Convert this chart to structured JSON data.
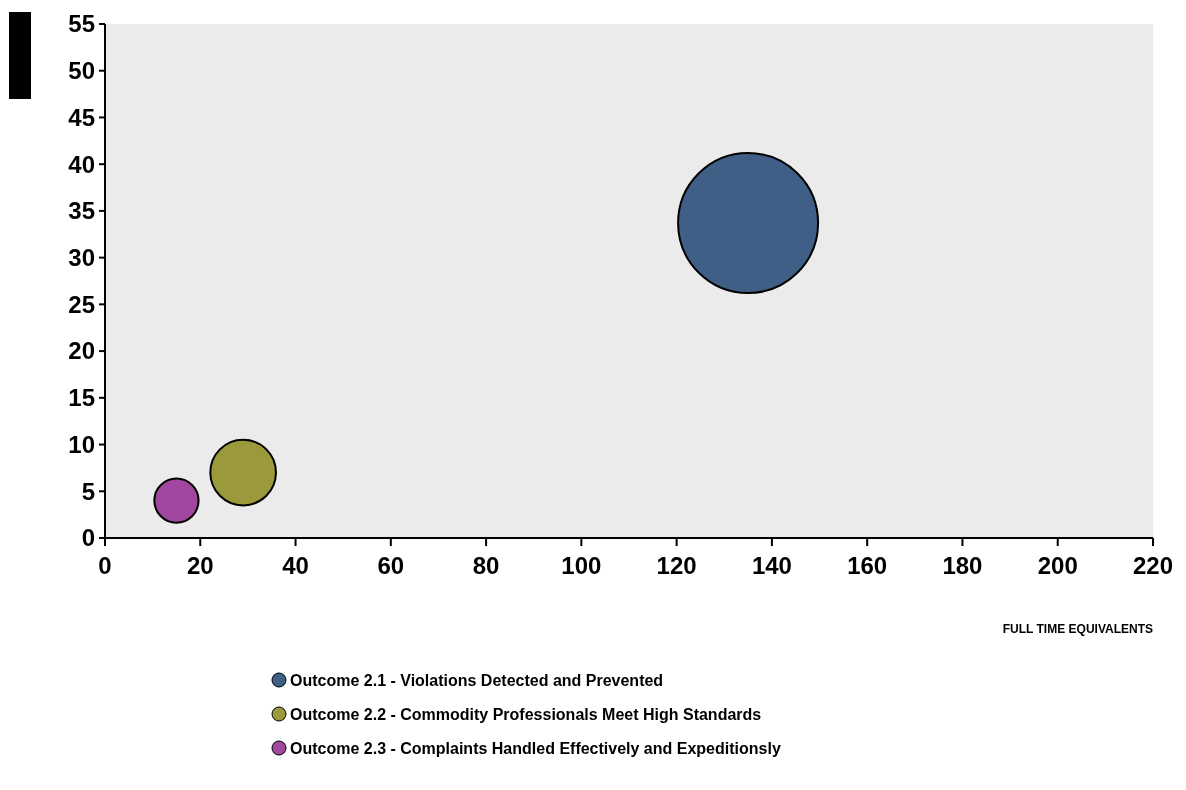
{
  "chart_data": {
    "type": "bubble",
    "xlabel": "FULL TIME EQUIVALENTS",
    "xlim": [
      0,
      220
    ],
    "xticks": [
      0,
      20,
      40,
      60,
      80,
      100,
      120,
      140,
      160,
      180,
      200,
      220
    ],
    "ylim": [
      0,
      55
    ],
    "yticks": [
      0,
      5,
      10,
      15,
      20,
      25,
      30,
      35,
      40,
      45,
      50,
      55
    ],
    "grid": false,
    "legend": "bottom",
    "series": [
      {
        "name": "Outcome 2.1 - Violations Detected and Prevented",
        "color": "#3f5f86",
        "x": [
          135
        ],
        "values": [
          33.7
        ],
        "sizes": [
          1
        ]
      },
      {
        "name": "Outcome 2.2 - Commodity Professionals Meet High Standards",
        "color": "#9a9a3c",
        "x": [
          29
        ],
        "values": [
          7
        ],
        "sizes": [
          0.22
        ]
      },
      {
        "name": "Outcome 2.3 - Complaints Handled Effectively and Expeditionsly",
        "color": "#a2479f",
        "x": [
          15
        ],
        "values": [
          4
        ],
        "sizes": [
          0.1
        ]
      }
    ]
  }
}
